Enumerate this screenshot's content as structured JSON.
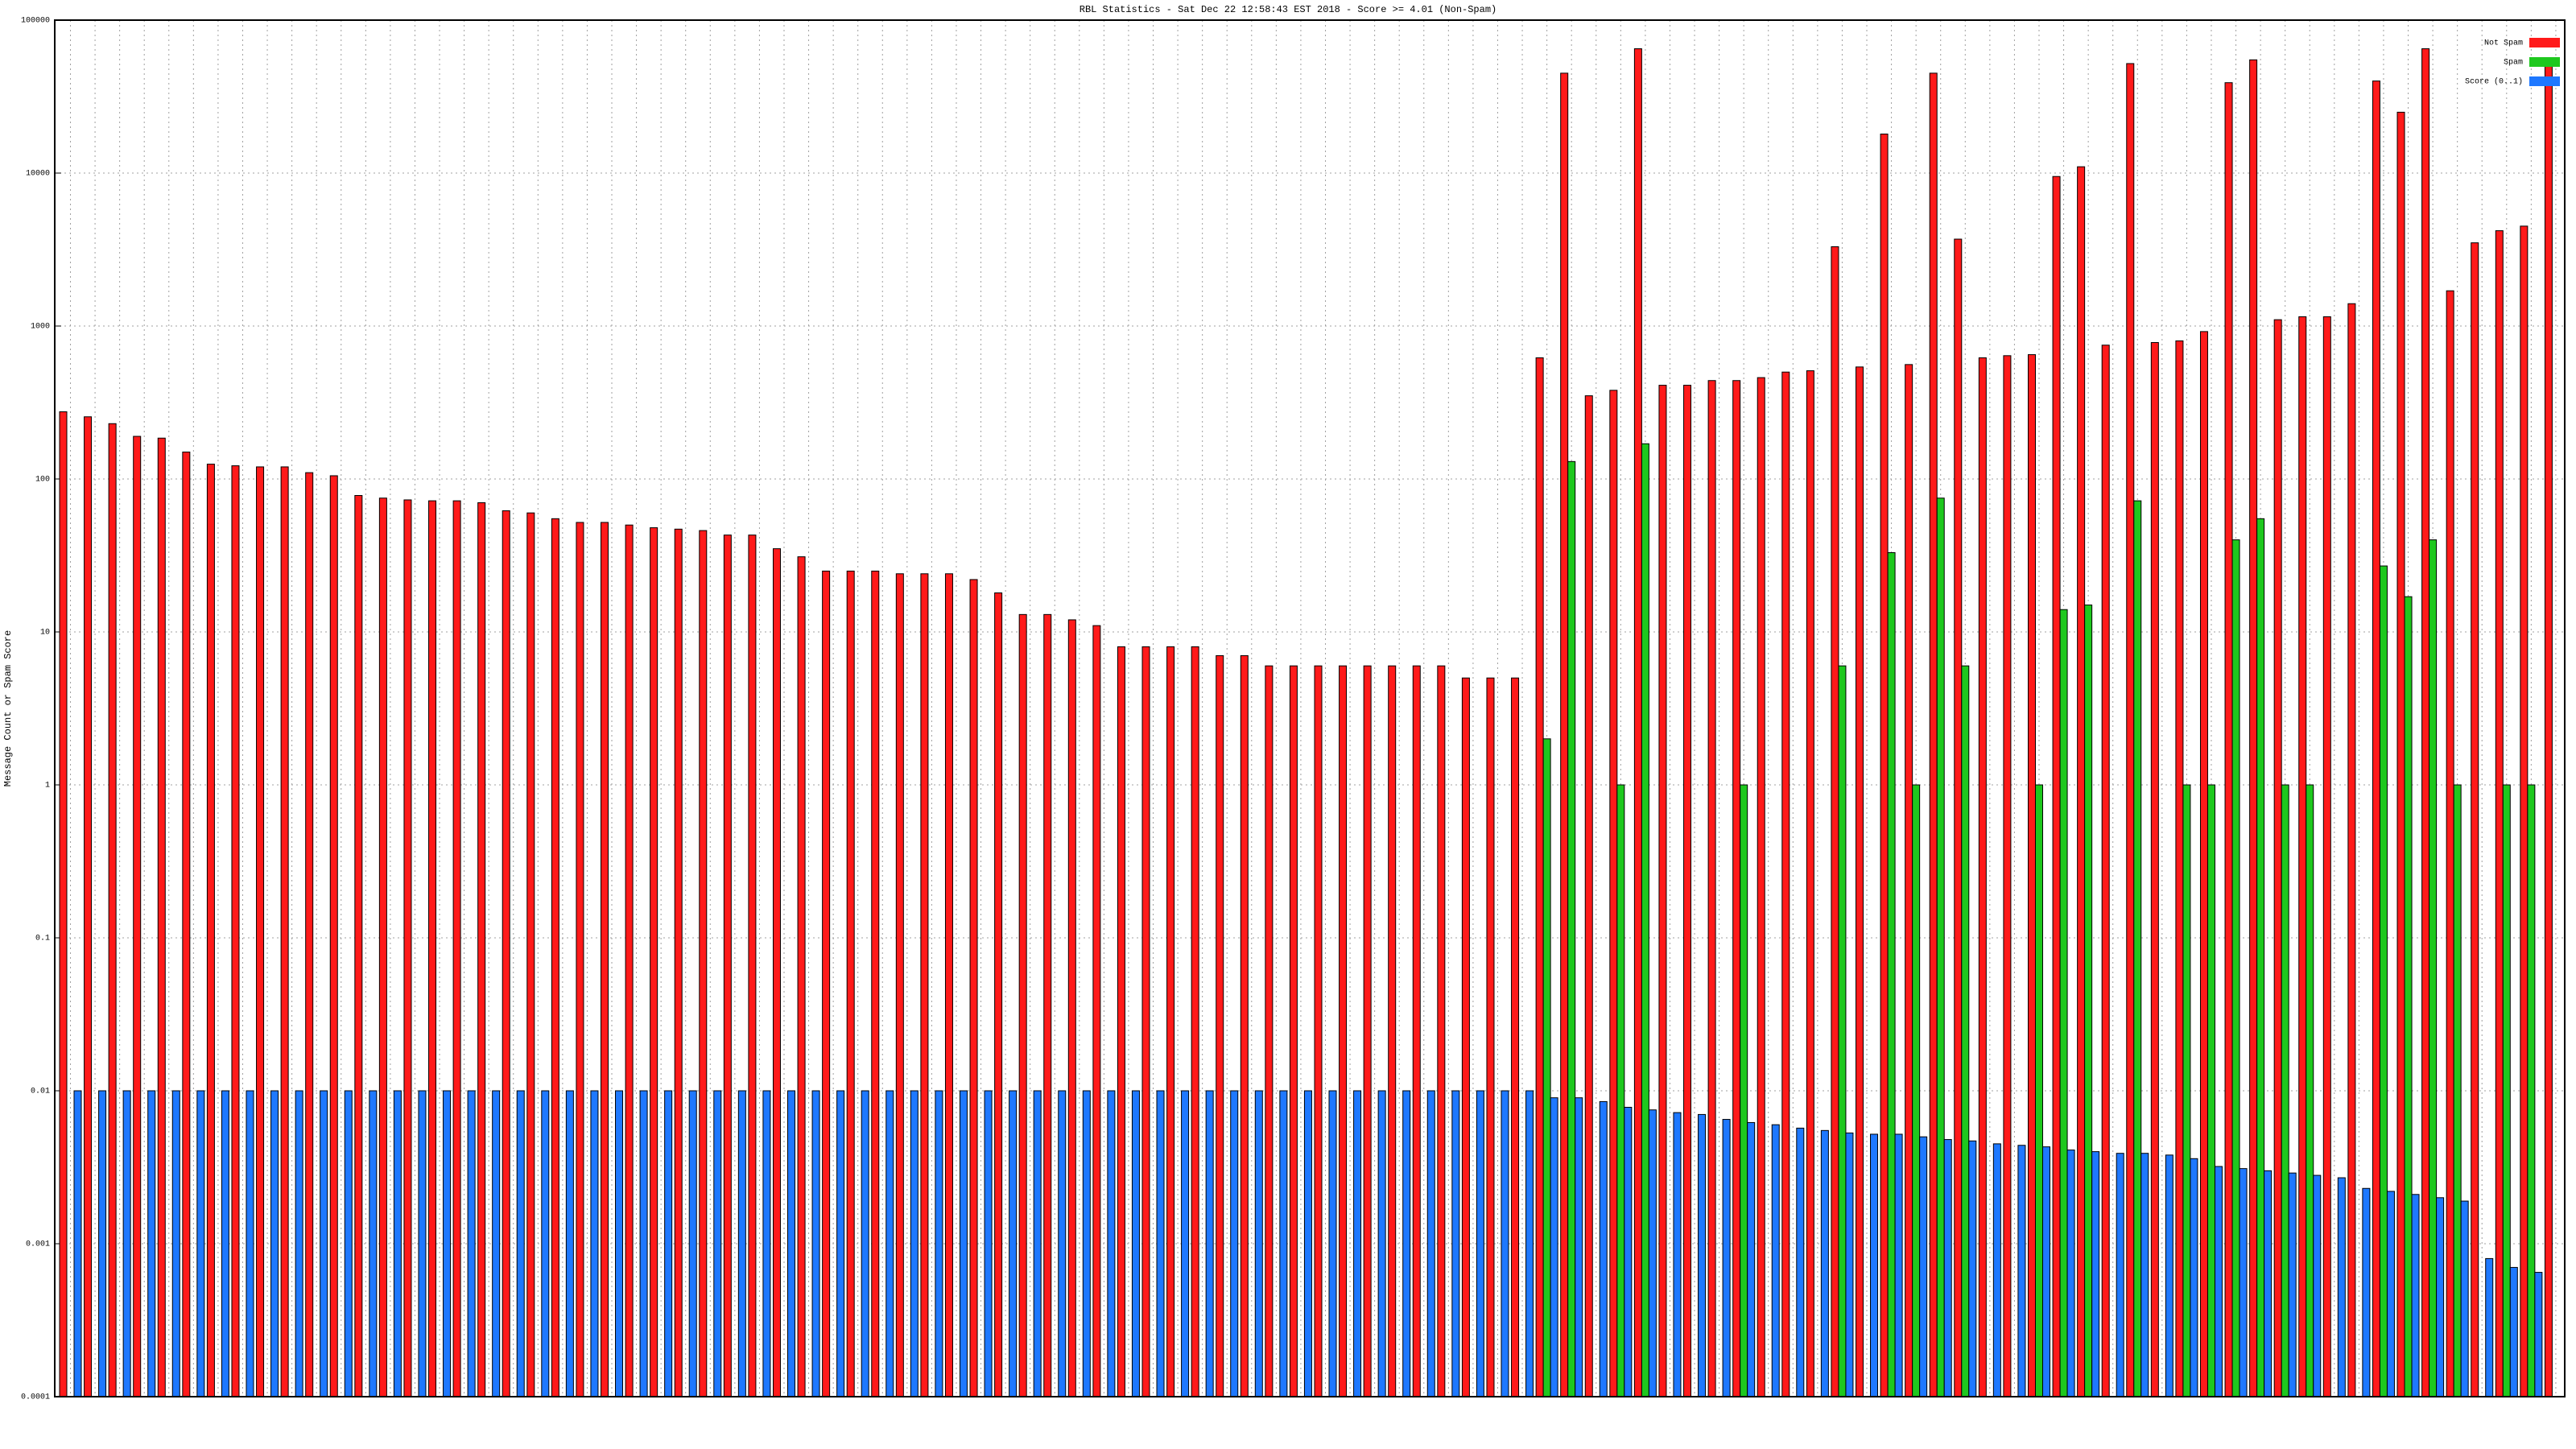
{
  "chart_data": {
    "type": "bar",
    "title": "RBL Statistics - Sat Dec 22 12:58:43 EST 2018 - Score >= 4.01 (Non-Spam)",
    "y_label": "Message Count or Spam Score",
    "log_scale": true,
    "grid": true,
    "legend": "top-right",
    "ylim": [
      0.0001,
      100000
    ],
    "yticks": [
      0.0001,
      0.001,
      0.01,
      0.1,
      1,
      10,
      100,
      1000,
      10000,
      100000
    ],
    "categories": [
      null,
      null,
      null,
      null,
      null,
      null,
      null,
      null,
      null,
      null,
      null,
      null,
      null,
      null,
      null,
      null,
      null,
      null,
      null,
      null,
      null,
      null,
      null,
      null,
      null,
      null,
      null,
      null,
      null,
      null,
      null,
      null,
      null,
      null,
      null,
      null,
      null,
      null,
      null,
      null,
      null,
      null,
      null,
      null,
      null,
      null,
      null,
      null,
      null,
      null,
      null,
      null,
      null,
      null,
      null,
      null,
      null,
      null,
      null,
      null,
      null,
      null,
      null,
      null,
      null,
      null,
      null,
      null,
      null,
      null,
      null,
      null,
      null,
      null,
      null,
      null,
      null,
      null,
      null,
      null,
      null,
      null,
      null,
      null,
      null,
      null,
      null,
      null,
      null,
      null,
      null,
      null,
      null,
      null,
      null,
      null,
      null,
      null,
      null,
      null,
      null,
      null
    ],
    "series": [
      {
        "name": "Not Spam",
        "color": "#ff1a1a",
        "values": [
          275,
          255,
          230,
          190,
          185,
          150,
          125,
          122,
          120,
          120,
          110,
          105,
          78,
          75,
          73,
          72,
          72,
          70,
          62,
          60,
          55,
          52,
          52,
          50,
          48,
          47,
          46,
          43,
          43,
          35,
          31,
          25,
          25,
          25,
          24,
          24,
          24,
          22,
          18,
          13,
          13,
          12,
          11,
          8,
          8,
          8,
          8,
          7,
          7,
          6,
          6,
          6,
          6,
          6,
          6,
          6,
          6,
          5,
          5,
          5,
          620,
          45000,
          350,
          380,
          65000,
          410,
          410,
          440,
          440,
          460,
          500,
          510,
          3300,
          540,
          18000,
          560,
          45000,
          3700,
          620,
          640,
          650,
          9500,
          11000,
          750,
          52000,
          780,
          800,
          920,
          39000,
          55000,
          1100,
          1150,
          1150,
          1400,
          40000,
          25000,
          65000,
          1700,
          3500,
          4200,
          4500,
          50000
        ]
      },
      {
        "name": "Spam",
        "color": "#1ec81e",
        "values": [
          null,
          null,
          null,
          null,
          null,
          null,
          null,
          null,
          null,
          null,
          null,
          null,
          null,
          null,
          null,
          null,
          null,
          null,
          null,
          null,
          null,
          null,
          null,
          null,
          null,
          null,
          null,
          null,
          null,
          null,
          null,
          null,
          null,
          null,
          null,
          null,
          null,
          null,
          null,
          null,
          null,
          null,
          null,
          null,
          null,
          null,
          null,
          null,
          null,
          null,
          null,
          null,
          null,
          null,
          null,
          null,
          null,
          null,
          null,
          null,
          2,
          130,
          null,
          1,
          170,
          null,
          null,
          null,
          1,
          null,
          null,
          null,
          6,
          null,
          33,
          1,
          75,
          6,
          null,
          null,
          1,
          14,
          15,
          null,
          72,
          null,
          1,
          1,
          40,
          55,
          1,
          1,
          null,
          null,
          27,
          17,
          40,
          1,
          null,
          1,
          1,
          null
        ]
      },
      {
        "name": "Score (0..1)",
        "color": "#1e78ff",
        "values": [
          0.01,
          0.01,
          0.01,
          0.01,
          0.01,
          0.01,
          0.01,
          0.01,
          0.01,
          0.01,
          0.01,
          0.01,
          0.01,
          0.01,
          0.01,
          0.01,
          0.01,
          0.01,
          0.01,
          0.01,
          0.01,
          0.01,
          0.01,
          0.01,
          0.01,
          0.01,
          0.01,
          0.01,
          0.01,
          0.01,
          0.01,
          0.01,
          0.01,
          0.01,
          0.01,
          0.01,
          0.01,
          0.01,
          0.01,
          0.01,
          0.01,
          0.01,
          0.01,
          0.01,
          0.01,
          0.01,
          0.01,
          0.01,
          0.01,
          0.01,
          0.01,
          0.01,
          0.01,
          0.01,
          0.01,
          0.01,
          0.01,
          0.01,
          0.01,
          0.01,
          0.009,
          0.009,
          0.0085,
          0.0078,
          0.0075,
          0.0072,
          0.007,
          0.0065,
          0.0062,
          0.006,
          0.0057,
          0.0055,
          0.0053,
          0.0052,
          0.0052,
          0.005,
          0.0048,
          0.0047,
          0.0045,
          0.0044,
          0.0043,
          0.0041,
          0.004,
          0.0039,
          0.0039,
          0.0038,
          0.0036,
          0.0032,
          0.0031,
          0.003,
          0.0029,
          0.0028,
          0.0027,
          0.0023,
          0.0022,
          0.0021,
          0.002,
          0.0019,
          0.0008,
          0.0007,
          0.00065,
          null
        ]
      }
    ]
  }
}
